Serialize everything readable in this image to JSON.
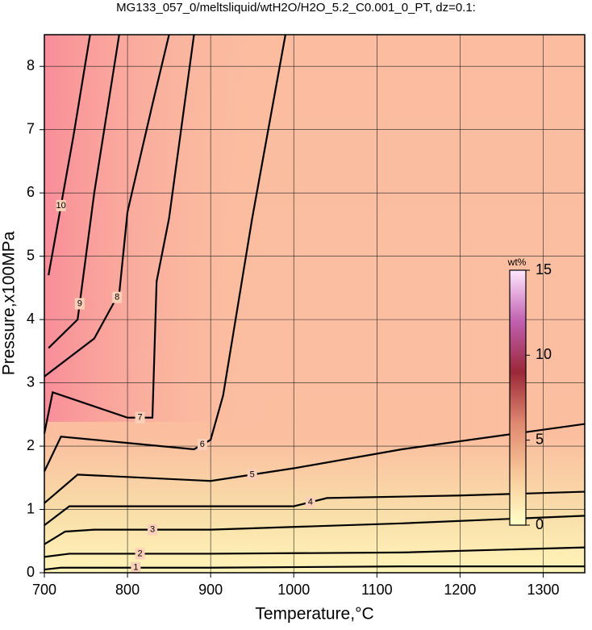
{
  "chart_data": {
    "type": "contour",
    "title": "MG133_057_0/meltsliquid/wtH2O/H2O_5.2_C0.001_0_PT, dz=0.1:",
    "x_label": "Temperature,°C",
    "y_label": "Pressure,x100MPa",
    "xlim": [
      700,
      1350
    ],
    "ylim": [
      0,
      8.5
    ],
    "xticks": [
      700,
      800,
      900,
      1000,
      1100,
      1200,
      1300
    ],
    "yticks": [
      0,
      1,
      2,
      3,
      4,
      5,
      6,
      7,
      8
    ],
    "grid": true,
    "line_color": "#000000",
    "contours": [
      {
        "level": 1,
        "x": [
          700,
          720,
          900,
          1130,
          1350
        ],
        "y": [
          0.05,
          0.08,
          0.08,
          0.1,
          0.1
        ]
      },
      {
        "level": 2,
        "x": [
          700,
          730,
          900,
          1130,
          1350
        ],
        "y": [
          0.25,
          0.3,
          0.3,
          0.32,
          0.4
        ]
      },
      {
        "level": 3,
        "x": [
          700,
          725,
          760,
          900,
          1130,
          1350
        ],
        "y": [
          0.45,
          0.65,
          0.68,
          0.68,
          0.78,
          0.9
        ]
      },
      {
        "level": 4,
        "x": [
          700,
          730,
          1000,
          1040,
          1200,
          1350
        ],
        "y": [
          0.75,
          1.05,
          1.05,
          1.18,
          1.22,
          1.28
        ]
      },
      {
        "level": 5,
        "x": [
          700,
          740,
          900,
          1000,
          1130,
          1350
        ],
        "y": [
          1.1,
          1.55,
          1.45,
          1.65,
          1.95,
          2.35
        ]
      },
      {
        "level": 6,
        "x": [
          700,
          720,
          800,
          880,
          900,
          915,
          950,
          990
        ],
        "y": [
          1.6,
          2.15,
          2.05,
          1.95,
          2.1,
          2.8,
          5.6,
          8.5
        ]
      },
      {
        "level": 7,
        "x": [
          700,
          710,
          800,
          830,
          835,
          850,
          880
        ],
        "y": [
          2.2,
          2.85,
          2.45,
          2.45,
          4.6,
          5.6,
          8.5
        ]
      },
      {
        "level": 8,
        "x": [
          700,
          760,
          785,
          790,
          800,
          830,
          850
        ],
        "y": [
          3.1,
          3.7,
          4.3,
          4.4,
          5.7,
          7.4,
          8.5
        ]
      },
      {
        "level": 9,
        "x": [
          705,
          740,
          745,
          760,
          790
        ],
        "y": [
          3.55,
          4.0,
          4.5,
          6.0,
          8.5
        ]
      },
      {
        "level": 10,
        "x": [
          705,
          735,
          755
        ],
        "y": [
          4.7,
          6.9,
          8.5
        ]
      }
    ],
    "colorbar": {
      "label": "wt%",
      "lim": [
        0,
        15
      ],
      "ticks": [
        0,
        5,
        10,
        15
      ],
      "colors": [
        "#ffffc8",
        "#f8c898",
        "#e08870",
        "#9a2838",
        "#c060b0",
        "#ffe8ff"
      ]
    }
  }
}
